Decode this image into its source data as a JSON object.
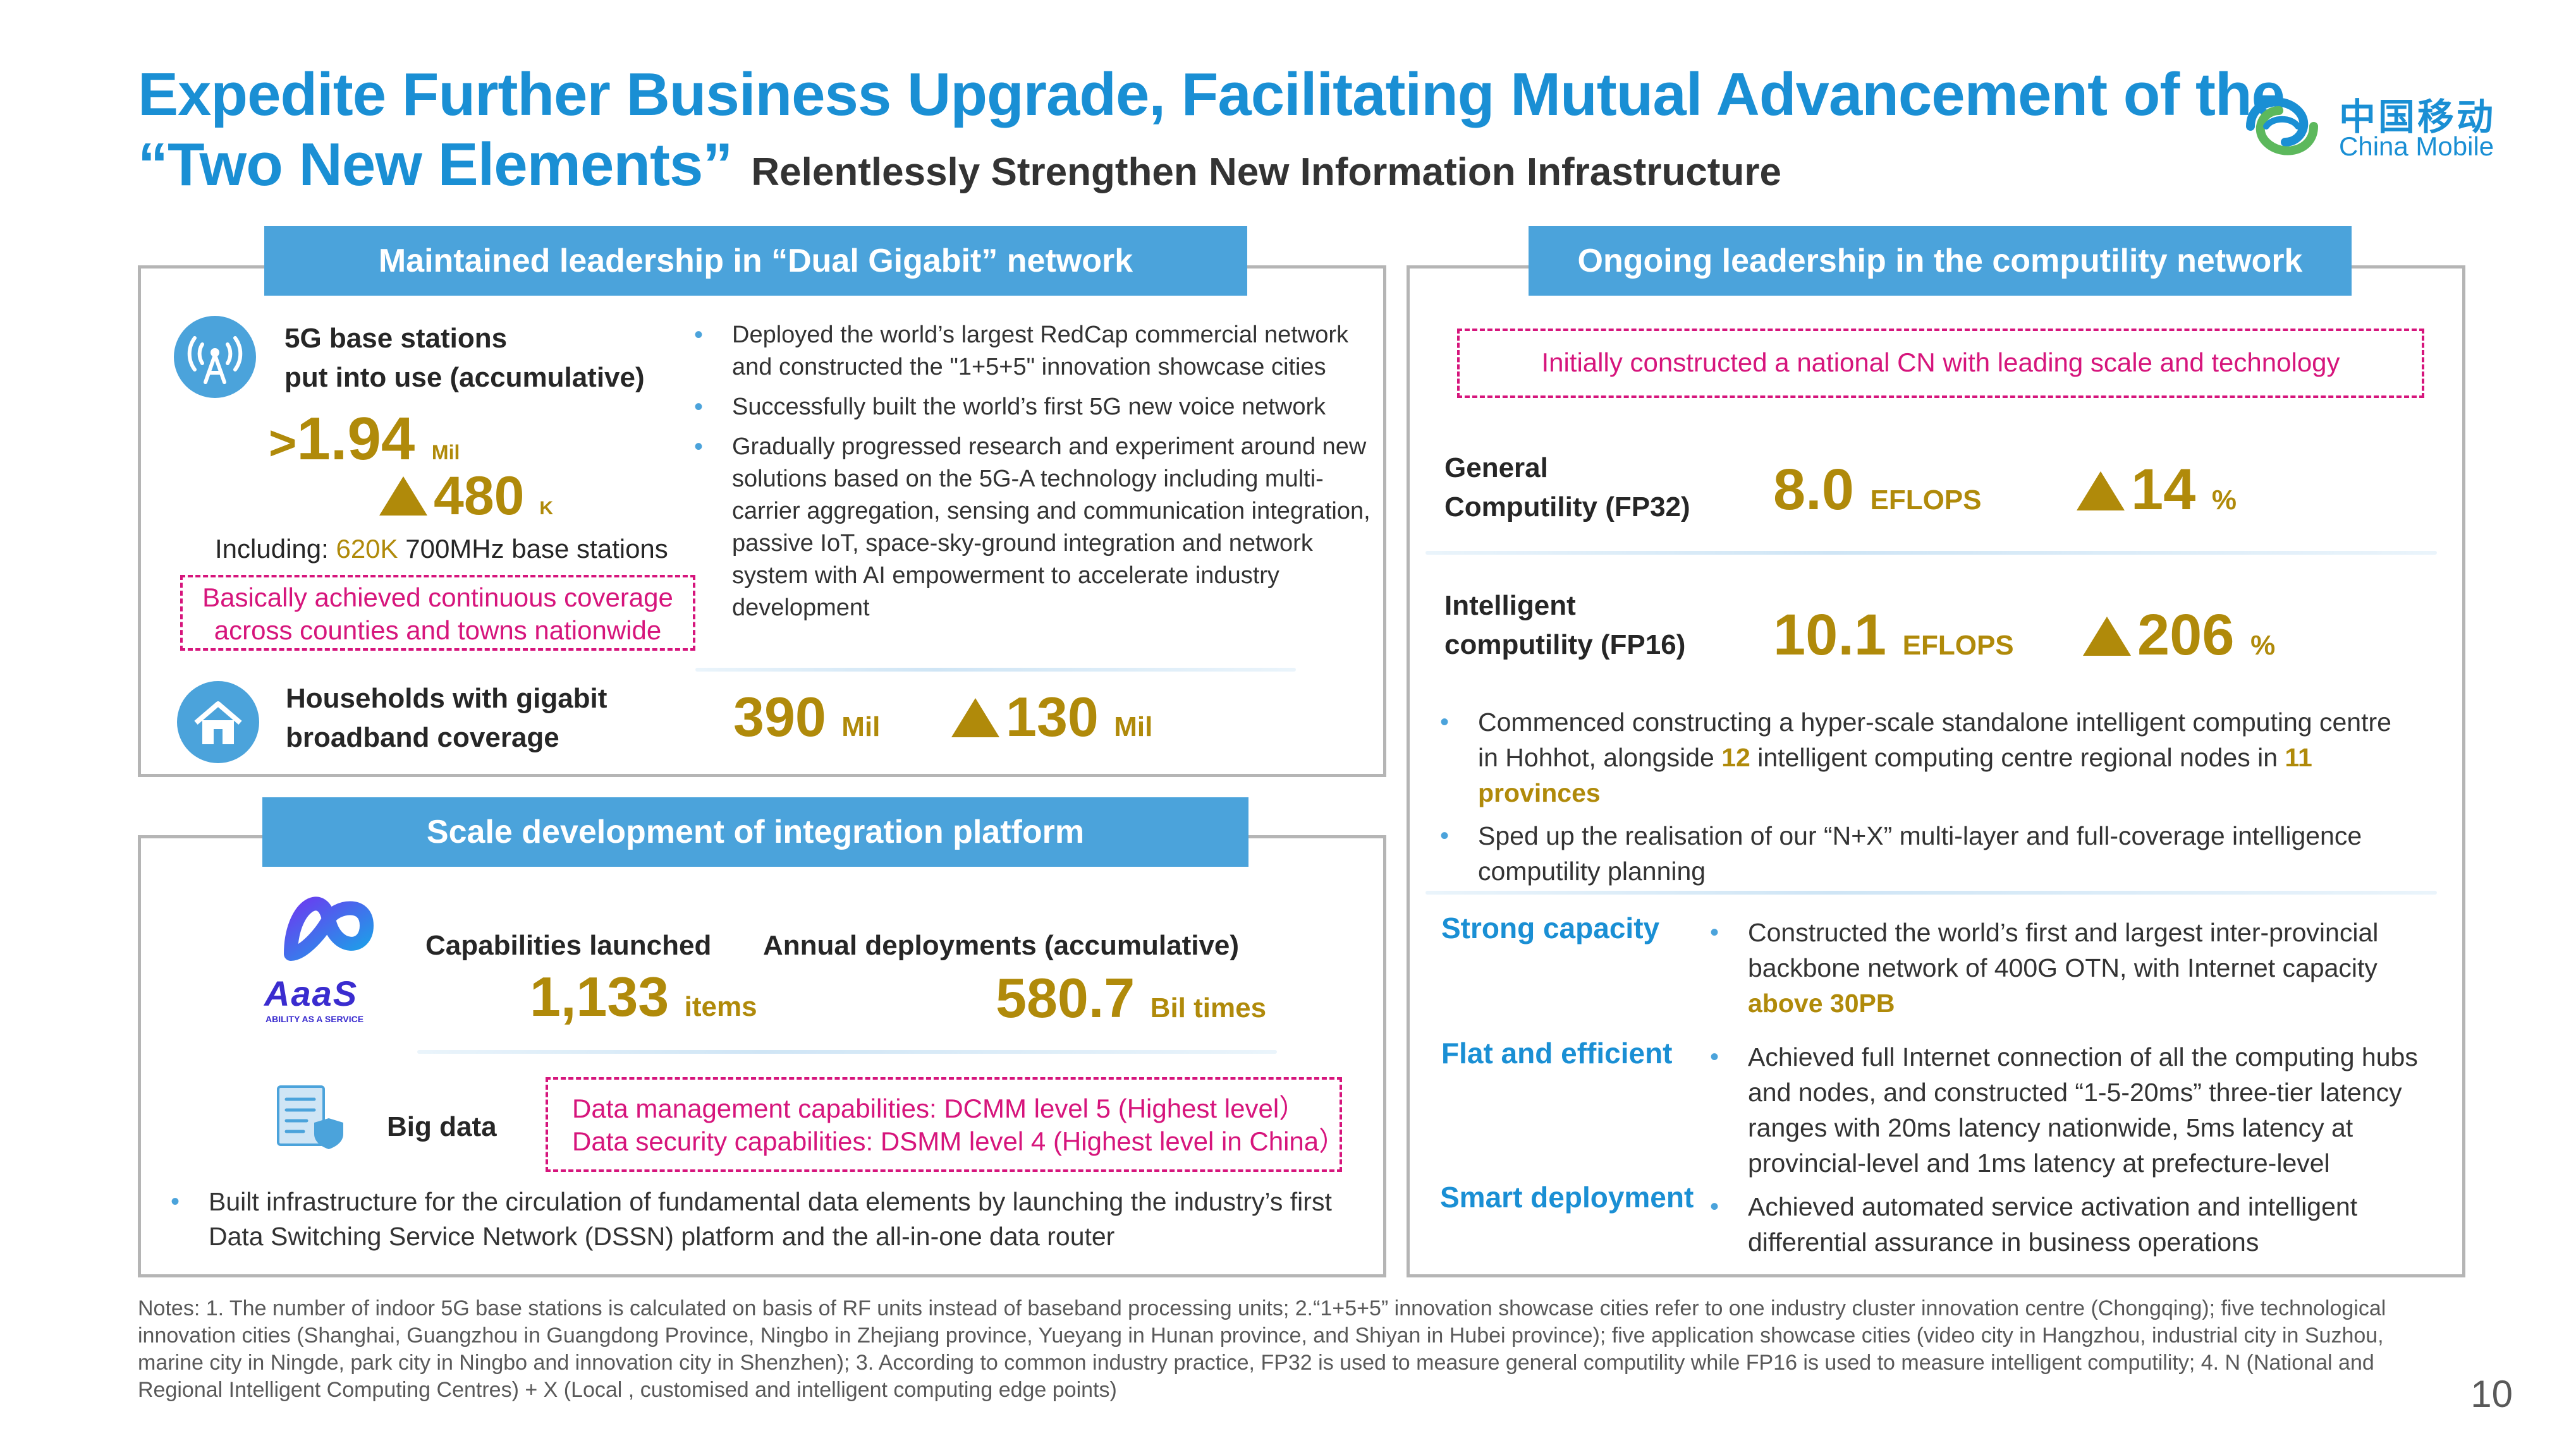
{
  "title": {
    "line1": "Expedite Further Business Upgrade, Facilitating Mutual Advancement of the",
    "line2": "“Two New Elements”",
    "subtitle": "Relentlessly Strengthen New Information Infrastructure"
  },
  "logo": {
    "cn": "中国移动",
    "en": "China Mobile",
    "icon": "china-mobile-logo"
  },
  "dual_gigabit": {
    "header": "Maintained leadership in “Dual Gigabit” network",
    "base_stations_label_1": "5G base stations",
    "base_stations_label_2": "put into use (accumulative)",
    "base_stations_prefix": ">",
    "base_stations_value": "1.94",
    "base_stations_unit": "Mil",
    "base_stations_increase": "480",
    "base_stations_increase_unit": "K",
    "including_prefix": "Including: ",
    "including_value": "620K",
    "including_suffix": " 700MHz base stations",
    "coverage_note_1": "Basically achieved continuous coverage",
    "coverage_note_2": "across counties and towns nationwide",
    "bullets": [
      "Deployed the world’s largest RedCap commercial network and constructed the \"1+5+5\" innovation showcase cities",
      "Successfully built the world’s first 5G new voice network",
      "Gradually progressed research and experiment around new solutions based on the 5G-A technology including multi-carrier aggregation, sensing and communication integration, passive IoT, space-sky-ground integration and network system with AI empowerment to accelerate industry development"
    ],
    "households_label_1": "Households with gigabit",
    "households_label_2": "broadband coverage",
    "households_value": "390",
    "households_unit": "Mil",
    "households_increase": "130",
    "households_increase_unit": "Mil"
  },
  "integration": {
    "header": "Scale development of integration platform",
    "aaas_text": "AaaS",
    "aaas_caption": "ABILITY AS A SERVICE",
    "capabilities_label": "Capabilities launched",
    "capabilities_value": "1,133",
    "capabilities_unit": "items",
    "deployments_label": "Annual deployments (accumulative)",
    "deployments_value": "580.7",
    "deployments_unit": "Bil times",
    "big_data_label": "Big data",
    "data_mgmt": "Data management capabilities: DCMM level 5 (Highest level）",
    "data_security": "Data security capabilities: DSMM level 4 (Highest level in China）",
    "bullet": "Built infrastructure for the circulation of fundamental data elements by launching the industry’s first Data Switching Service Network (DSSN) platform and the all-in-one data router"
  },
  "computility": {
    "header": "Ongoing leadership in the computility network",
    "cn_note": "Initially constructed a national CN with leading scale and technology",
    "general_label_1": "General",
    "general_label_2": "Computility (FP32)",
    "general_value": "8.0",
    "general_unit": "EFLOPS",
    "general_increase": "14",
    "general_increase_unit": "%",
    "intelligent_label_1": "Intelligent",
    "intelligent_label_2": "computility (FP16)",
    "intelligent_value": "10.1",
    "intelligent_unit": "EFLOPS",
    "intelligent_increase": "206",
    "intelligent_increase_unit": "%",
    "bullet1_a": "Commenced constructing a hyper-scale standalone intelligent computing centre in Hohhot, alongside ",
    "bullet1_num": "12",
    "bullet1_b": " intelligent computing centre regional nodes in ",
    "bullet1_prov": "11 provinces",
    "bullet2": "Sped up the realisation of our “N+X”  multi-layer and full-coverage intelligence computility planning",
    "strong_label": "Strong capacity",
    "strong_text": "Constructed the world’s first and largest inter-provincial backbone network of 400G OTN, with Internet capacity ",
    "strong_highlight": "above 30PB",
    "flat_label": "Flat and efficient",
    "flat_text": "Achieved full Internet connection of all the computing hubs and nodes, and constructed “1-5-20ms” three-tier latency ranges with 20ms latency nationwide, 5ms latency at provincial-level and 1ms latency at prefecture-level",
    "smart_label": "Smart deployment",
    "smart_text": "Achieved automated service activation and intelligent differential assurance in business operations"
  },
  "notes": "Notes: 1. The number of indoor 5G base stations is calculated on basis of RF units instead of baseband processing units; 2.“1+5+5” innovation showcase cities refer to one industry cluster innovation centre (Chongqing); five technological innovation cities (Shanghai, Guangzhou in Guangdong Province, Ningbo in Zhejiang province, Yueyang in Hunan province, and Shiyan in Hubei province); five application showcase cities (video city in Hangzhou, industrial city in Suzhou, marine city in Ningde, park city in Ningbo and innovation city in Shenzhen); 3. According to common industry practice, FP32 is used to measure general computility while FP16 is used to measure intelligent computility; 4. N (National and Regional Intelligent Computing Centres) + X (Local , customised and intelligent computing edge points)",
  "page_number": "10",
  "colors": {
    "accent": "#1a8fd4",
    "header_bg": "#4ba3db",
    "gold": "#b08a0a",
    "magenta": "#d6157c"
  }
}
